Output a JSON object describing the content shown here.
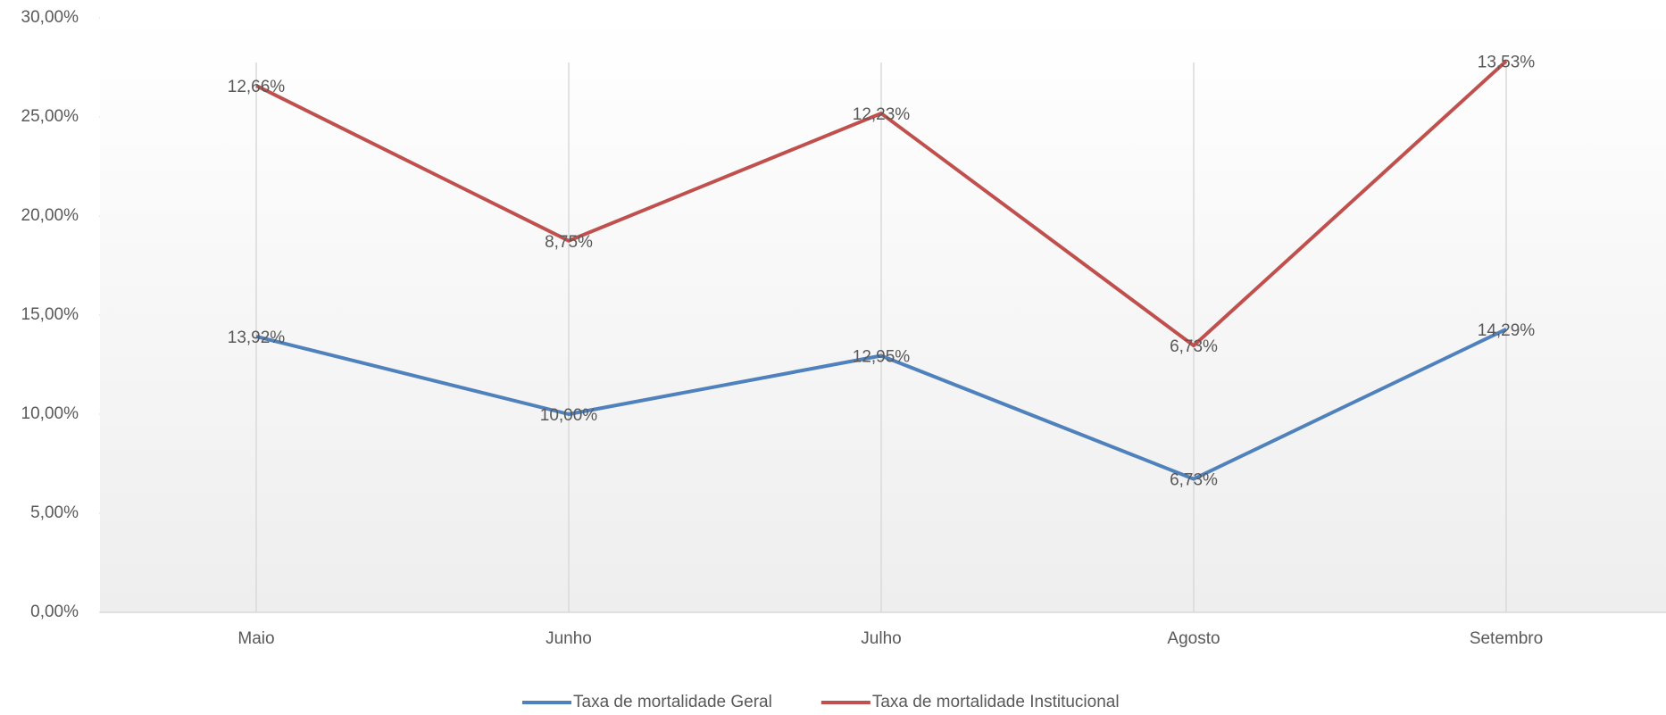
{
  "chart_data": {
    "type": "line",
    "stacked": true,
    "categories": [
      "Maio",
      "Junho",
      "Julho",
      "Agosto",
      "Setembro"
    ],
    "series": [
      {
        "name": "Taxa de mortalidade Geral",
        "color": "#4f81bd",
        "values": [
          13.92,
          10.0,
          12.95,
          6.73,
          14.29
        ],
        "value_labels": [
          "13,92%",
          "10,00%",
          "12,95%",
          "6,73%",
          "14,29%"
        ]
      },
      {
        "name": "Taxa de mortalidade Institucional",
        "color": "#c0504d",
        "values": [
          12.66,
          8.75,
          12.23,
          6.73,
          13.53
        ],
        "value_labels": [
          "12,66%",
          "8,75%",
          "12,23%",
          "6,73%",
          "13,53%"
        ]
      }
    ],
    "ylim": [
      0,
      30
    ],
    "yticks": [
      {
        "value": 0,
        "label": "0,00%"
      },
      {
        "value": 5,
        "label": "5,00%"
      },
      {
        "value": 10,
        "label": "10,00%"
      },
      {
        "value": 15,
        "label": "15,00%"
      },
      {
        "value": 20,
        "label": "20,00%"
      },
      {
        "value": 25,
        "label": "25,00%"
      },
      {
        "value": 30,
        "label": "30,00%"
      }
    ],
    "legend": "bottom"
  }
}
